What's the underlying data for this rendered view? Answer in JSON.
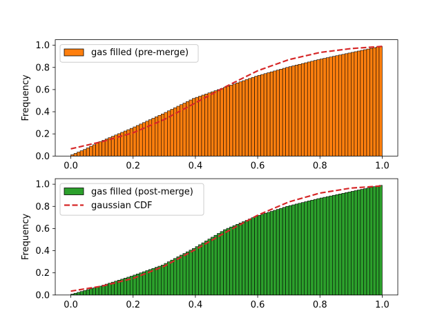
{
  "chart_data": [
    {
      "type": "bar",
      "ylabel": "Frequency",
      "xlim": [
        -0.05,
        1.05
      ],
      "ylim": [
        0.0,
        1.05
      ],
      "xticks": [
        0.0,
        0.2,
        0.4,
        0.6,
        0.8,
        1.0
      ],
      "xtick_labels": [
        "0.0",
        "0.2",
        "0.4",
        "0.6",
        "0.8",
        "1.0"
      ],
      "yticks": [
        0.0,
        0.2,
        0.4,
        0.6,
        0.8,
        1.0
      ],
      "ytick_labels": [
        "0.0",
        "0.2",
        "0.4",
        "0.6",
        "0.8",
        "1.0"
      ],
      "legend_position": "upper-left",
      "histogram": {
        "name": "gas filled (pre-merge)",
        "color": "#ff7f0e",
        "edge_color": "#000000",
        "bin_count": 100,
        "bin_range": [
          0.0,
          1.0
        ],
        "points": [
          [
            0.0,
            0.0
          ],
          [
            0.05,
            0.06
          ],
          [
            0.1,
            0.13
          ],
          [
            0.2,
            0.25
          ],
          [
            0.3,
            0.38
          ],
          [
            0.4,
            0.52
          ],
          [
            0.5,
            0.62
          ],
          [
            0.6,
            0.72
          ],
          [
            0.7,
            0.8
          ],
          [
            0.8,
            0.87
          ],
          [
            0.9,
            0.93
          ],
          [
            1.0,
            0.99
          ]
        ]
      },
      "series": [
        {
          "name": "",
          "style": "dashed",
          "color": "#d62728",
          "x": [
            0.0,
            0.1,
            0.2,
            0.3,
            0.4,
            0.5,
            0.6,
            0.7,
            0.8,
            0.9,
            1.0
          ],
          "y": [
            0.065,
            0.13,
            0.21,
            0.33,
            0.48,
            0.63,
            0.77,
            0.87,
            0.935,
            0.97,
            0.99
          ]
        }
      ]
    },
    {
      "type": "bar",
      "ylabel": "Frequency",
      "xlim": [
        -0.05,
        1.05
      ],
      "ylim": [
        0.0,
        1.05
      ],
      "xticks": [
        0.0,
        0.2,
        0.4,
        0.6,
        0.8,
        1.0
      ],
      "xtick_labels": [
        "0.0",
        "0.2",
        "0.4",
        "0.6",
        "0.8",
        "1.0"
      ],
      "yticks": [
        0.0,
        0.2,
        0.4,
        0.6,
        0.8,
        1.0
      ],
      "ytick_labels": [
        "0.0",
        "0.2",
        "0.4",
        "0.6",
        "0.8",
        "1.0"
      ],
      "legend_position": "upper-left",
      "histogram": {
        "name": "gas filled (post-merge)",
        "color": "#2ca02c",
        "edge_color": "#000000",
        "bin_count": 100,
        "bin_range": [
          0.0,
          1.0
        ],
        "points": [
          [
            0.0,
            0.0
          ],
          [
            0.05,
            0.04
          ],
          [
            0.1,
            0.08
          ],
          [
            0.2,
            0.17
          ],
          [
            0.3,
            0.27
          ],
          [
            0.4,
            0.42
          ],
          [
            0.5,
            0.59
          ],
          [
            0.6,
            0.71
          ],
          [
            0.7,
            0.8
          ],
          [
            0.8,
            0.87
          ],
          [
            0.9,
            0.93
          ],
          [
            1.0,
            0.99
          ]
        ]
      },
      "series": [
        {
          "name": "gaussian CDF",
          "style": "dashed",
          "color": "#d62728",
          "x": [
            0.0,
            0.1,
            0.2,
            0.3,
            0.4,
            0.5,
            0.6,
            0.7,
            0.8,
            0.9,
            1.0
          ],
          "y": [
            0.035,
            0.08,
            0.15,
            0.26,
            0.41,
            0.57,
            0.72,
            0.84,
            0.92,
            0.965,
            0.985
          ]
        }
      ]
    }
  ]
}
